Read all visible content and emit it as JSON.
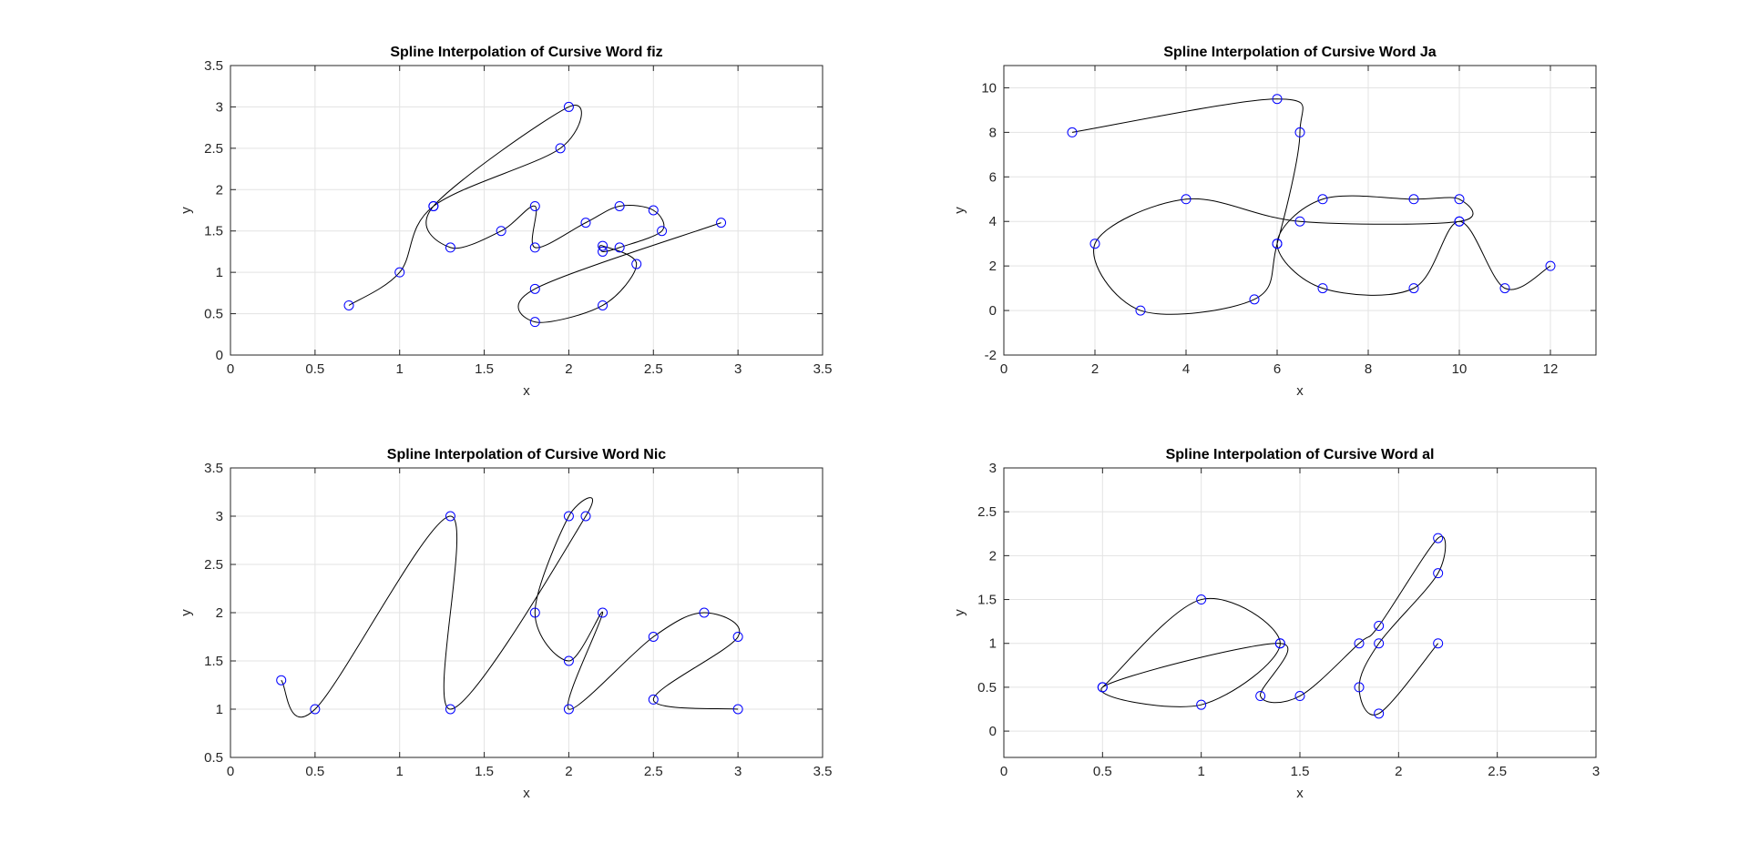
{
  "chart_data": [
    {
      "type": "line",
      "title": "Spline Interpolation of Cursive Word fiz",
      "xlabel": "x",
      "ylabel": "y",
      "xlim": [
        0,
        3.5
      ],
      "ylim": [
        0,
        3.5
      ],
      "xticks": [
        0,
        0.5,
        1,
        1.5,
        2,
        2.5,
        3,
        3.5
      ],
      "yticks": [
        0,
        0.5,
        1,
        1.5,
        2,
        2.5,
        3,
        3.5
      ],
      "grid": true,
      "points": [
        [
          0.7,
          0.6
        ],
        [
          1,
          1
        ],
        [
          1.2,
          1.8
        ],
        [
          1.95,
          2.5
        ],
        [
          2,
          3
        ],
        [
          1.2,
          1.8
        ],
        [
          1.3,
          1.3
        ],
        [
          1.6,
          1.5
        ],
        [
          1.8,
          1.8
        ],
        [
          1.8,
          1.3
        ],
        [
          2.1,
          1.6
        ],
        [
          2.3,
          1.8
        ],
        [
          2.5,
          1.75
        ],
        [
          2.55,
          1.5
        ],
        [
          2.3,
          1.3
        ],
        [
          2.2,
          1.25
        ],
        [
          2.2,
          1.32
        ],
        [
          2.4,
          1.1
        ],
        [
          2.2,
          0.6
        ],
        [
          1.8,
          0.4
        ],
        [
          1.8,
          0.8
        ],
        [
          2.9,
          1.6
        ]
      ],
      "series": [
        {
          "values": [
            [
              0.7,
              0.6
            ],
            [
              1,
              1
            ],
            [
              1.2,
              1.8
            ],
            [
              1.95,
              2.5
            ],
            [
              2,
              3
            ],
            [
              1.2,
              1.8
            ],
            [
              1.3,
              1.3
            ],
            [
              1.6,
              1.5
            ],
            [
              1.8,
              1.8
            ],
            [
              1.8,
              1.3
            ],
            [
              2.1,
              1.6
            ],
            [
              2.3,
              1.8
            ],
            [
              2.5,
              1.75
            ],
            [
              2.55,
              1.5
            ],
            [
              2.3,
              1.3
            ],
            [
              2.2,
              1.25
            ],
            [
              2.2,
              1.32
            ],
            [
              2.4,
              1.1
            ],
            [
              2.2,
              0.6
            ],
            [
              1.8,
              0.4
            ],
            [
              1.8,
              0.8
            ],
            [
              2.9,
              1.6
            ]
          ]
        }
      ]
    },
    {
      "type": "line",
      "title": "Spline Interpolation of Cursive Word Ja",
      "xlabel": "x",
      "ylabel": "y",
      "xlim": [
        0,
        13
      ],
      "ylim": [
        -2,
        11
      ],
      "xticks": [
        0,
        2,
        4,
        6,
        8,
        10,
        12
      ],
      "yticks": [
        -2,
        0,
        2,
        4,
        6,
        8,
        10
      ],
      "grid": true,
      "points": [
        [
          1.5,
          8
        ],
        [
          6,
          9.5
        ],
        [
          6.5,
          8
        ],
        [
          6,
          3
        ],
        [
          5.5,
          0.5
        ],
        [
          3,
          0
        ],
        [
          2,
          3
        ],
        [
          4,
          5
        ],
        [
          6.5,
          4
        ],
        [
          10,
          4
        ],
        [
          10,
          5
        ],
        [
          9,
          5
        ],
        [
          7,
          5
        ],
        [
          6,
          3
        ],
        [
          7,
          1
        ],
        [
          9,
          1
        ],
        [
          10,
          4
        ],
        [
          11,
          1
        ],
        [
          12,
          2
        ]
      ],
      "series": [
        {
          "values": [
            [
              1.5,
              8
            ],
            [
              6,
              9.5
            ],
            [
              6.5,
              8
            ],
            [
              6,
              3
            ],
            [
              5.5,
              0.5
            ],
            [
              3,
              0
            ],
            [
              2,
              3
            ],
            [
              4,
              5
            ],
            [
              6.5,
              4
            ],
            [
              10,
              4
            ],
            [
              10,
              5
            ],
            [
              9,
              5
            ],
            [
              7,
              5
            ],
            [
              6,
              3
            ],
            [
              7,
              1
            ],
            [
              9,
              1
            ],
            [
              10,
              4
            ],
            [
              11,
              1
            ],
            [
              12,
              2
            ]
          ]
        }
      ]
    },
    {
      "type": "line",
      "title": "Spline Interpolation of Cursive Word Nic",
      "xlabel": "x",
      "ylabel": "y",
      "xlim": [
        0,
        3.5
      ],
      "ylim": [
        0.5,
        3.5
      ],
      "xticks": [
        0,
        0.5,
        1,
        1.5,
        2,
        2.5,
        3,
        3.5
      ],
      "yticks": [
        0.5,
        1,
        1.5,
        2,
        2.5,
        3,
        3.5
      ],
      "grid": true,
      "points": [
        [
          0.3,
          1.3
        ],
        [
          0.5,
          1
        ],
        [
          1.3,
          3
        ],
        [
          1.3,
          1
        ],
        [
          2.1,
          3
        ],
        [
          2,
          3
        ],
        [
          1.8,
          2
        ],
        [
          2,
          1.5
        ],
        [
          2.2,
          2
        ],
        [
          2,
          1
        ],
        [
          2.5,
          1.75
        ],
        [
          2.8,
          2
        ],
        [
          3,
          1.75
        ],
        [
          2.5,
          1.1
        ],
        [
          3,
          1
        ]
      ],
      "series": [
        {
          "values": [
            [
              0.3,
              1.3
            ],
            [
              0.5,
              1
            ],
            [
              1.3,
              3
            ],
            [
              1.3,
              1
            ],
            [
              2.1,
              3
            ],
            [
              2,
              3
            ],
            [
              1.8,
              2
            ],
            [
              2,
              1.5
            ],
            [
              2.2,
              2
            ],
            [
              2,
              1
            ],
            [
              2.5,
              1.75
            ],
            [
              2.8,
              2
            ],
            [
              3,
              1.75
            ],
            [
              2.5,
              1.1
            ],
            [
              3,
              1
            ]
          ]
        }
      ]
    },
    {
      "type": "line",
      "title": "Spline Interpolation of Cursive Word al",
      "xlabel": "x",
      "ylabel": "y",
      "xlim": [
        0,
        3
      ],
      "ylim": [
        -0.3,
        3
      ],
      "xticks": [
        0,
        0.5,
        1,
        1.5,
        2,
        2.5,
        3
      ],
      "yticks": [
        0,
        0.5,
        1,
        1.5,
        2,
        2.5,
        3
      ],
      "grid": true,
      "points": [
        [
          0.5,
          0.5
        ],
        [
          1,
          1.5
        ],
        [
          1.4,
          1
        ],
        [
          1,
          0.3
        ],
        [
          0.5,
          0.5
        ],
        [
          1.4,
          1
        ],
        [
          1.3,
          0.4
        ],
        [
          1.5,
          0.4
        ],
        [
          1.8,
          1
        ],
        [
          1.9,
          1.2
        ],
        [
          2.2,
          2.2
        ],
        [
          2.2,
          1.8
        ],
        [
          1.9,
          1
        ],
        [
          1.8,
          0.5
        ],
        [
          1.9,
          0.2
        ],
        [
          2.2,
          1
        ]
      ],
      "series": [
        {
          "values": [
            [
              0.5,
              0.5
            ],
            [
              1,
              1.5
            ],
            [
              1.4,
              1
            ],
            [
              1,
              0.3
            ],
            [
              0.5,
              0.5
            ],
            [
              1.4,
              1
            ],
            [
              1.3,
              0.4
            ],
            [
              1.5,
              0.4
            ],
            [
              1.8,
              1
            ],
            [
              1.9,
              1.2
            ],
            [
              2.2,
              2.2
            ],
            [
              2.2,
              1.8
            ],
            [
              1.9,
              1
            ],
            [
              1.8,
              0.5
            ],
            [
              1.9,
              0.2
            ],
            [
              2.2,
              1
            ]
          ]
        }
      ]
    }
  ]
}
